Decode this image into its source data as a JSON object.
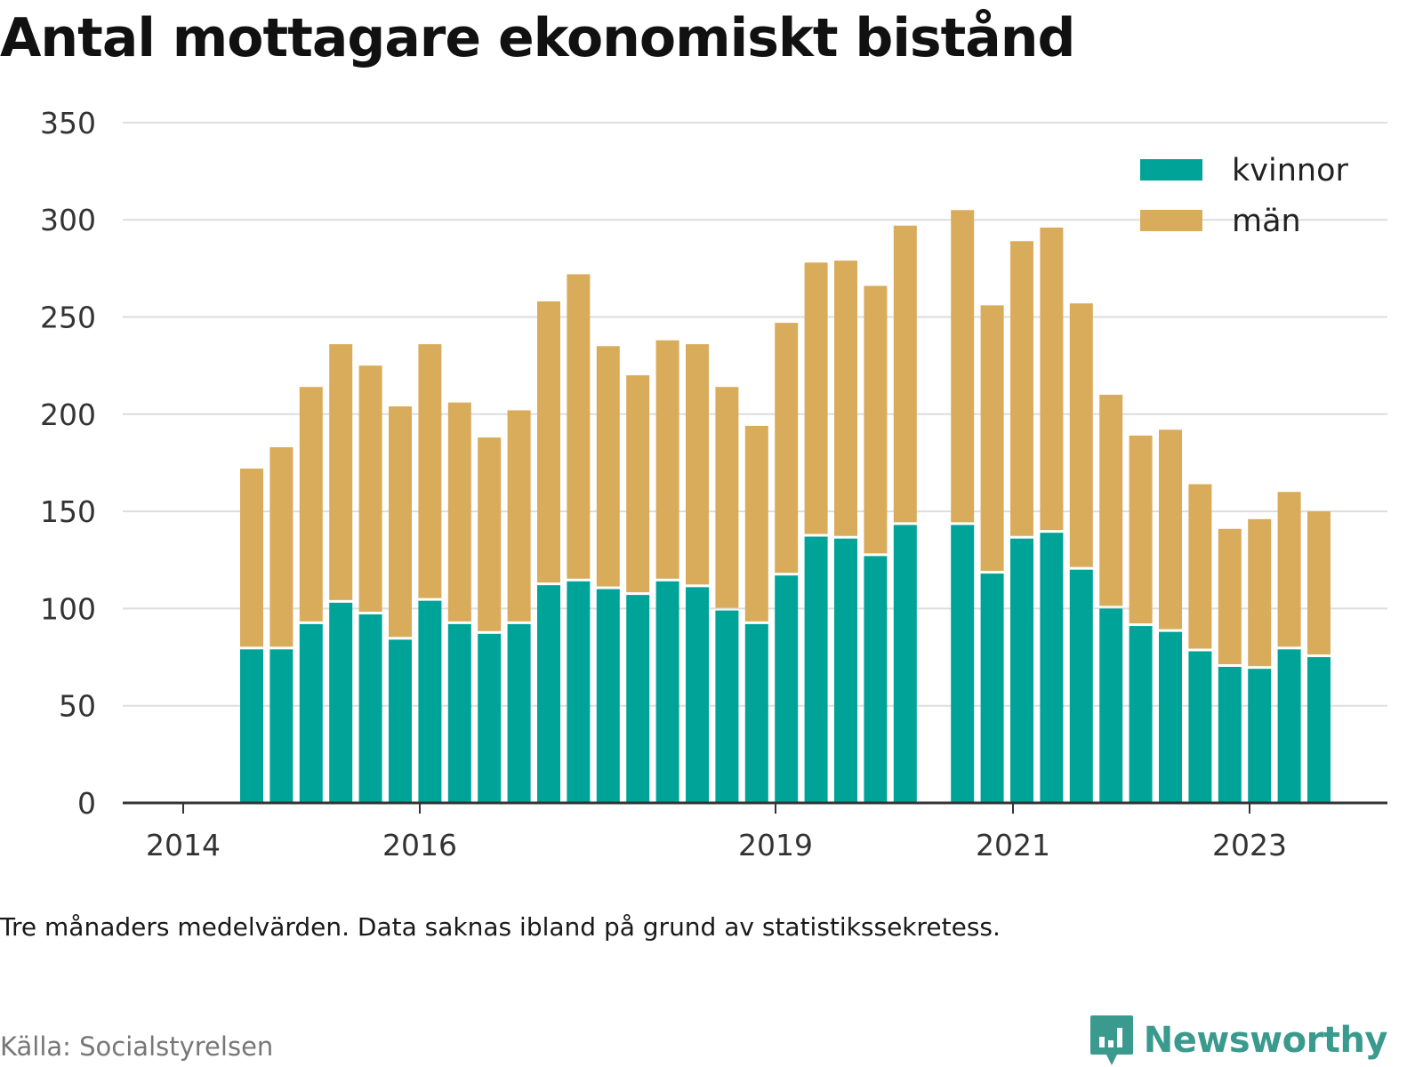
{
  "header": {
    "title": "Antal mottagare ekonomiskt bistånd"
  },
  "footer": {
    "note": "Tre månaders medelvärden. Data saknas ibland på grund av statistikssekretess.",
    "source": "Källa: Socialstyrelsen",
    "logo_text": "Newsworthy",
    "logo_icon": "bar-chart-speech-bubble-icon"
  },
  "colors": {
    "kvinnor": "#00a398",
    "man": "#d9ac5b",
    "grid": "#dddddd",
    "axis": "#333333",
    "logo": "#3a9a8e"
  },
  "chart_data": {
    "type": "bar",
    "stacked": true,
    "title": "Antal mottagare ekonomiskt bistånd",
    "xlabel": "",
    "ylabel": "",
    "ylim": [
      0,
      350
    ],
    "yticks": [
      0,
      50,
      100,
      150,
      200,
      250,
      300,
      350
    ],
    "grid": true,
    "legend_position": "top-right",
    "xtick_labels": [
      "2014",
      "2016",
      "2019",
      "2021",
      "2023"
    ],
    "categories": [
      "2014 kv3",
      "2014 kv4",
      "2015 kv1",
      "2015 kv2",
      "2015 kv3",
      "2015 kv4",
      "2016 kv1",
      "2016 kv2",
      "2016 kv3",
      "2016 kv4",
      "2017 kv1",
      "2017 kv2",
      "2017 kv3",
      "2017 kv4",
      "2018 kv1",
      "2018 kv2",
      "2018 kv3",
      "2018 kv4",
      "2019 kv1",
      "2019 kv2",
      "2019 kv3",
      "2019 kv4",
      "2020 kv1",
      "2020 kv2",
      "2020 kv3",
      "2020 kv4",
      "2021 kv1",
      "2021 kv2",
      "2021 kv3",
      "2021 kv4",
      "2022 kv1",
      "2022 kv2",
      "2022 kv3",
      "2022 kv4",
      "2023 kv1",
      "2023 kv2",
      "2023 kv3"
    ],
    "series": [
      {
        "name": "kvinnor",
        "values": [
          79,
          79,
          92,
          103,
          97,
          84,
          104,
          92,
          87,
          92,
          112,
          114,
          110,
          107,
          114,
          111,
          99,
          92,
          117,
          137,
          136,
          127,
          143,
          null,
          143,
          118,
          136,
          139,
          120,
          100,
          91,
          88,
          78,
          70,
          69,
          79,
          75
        ]
      },
      {
        "name": "män",
        "values": [
          93,
          104,
          122,
          133,
          128,
          120,
          132,
          114,
          101,
          110,
          146,
          158,
          125,
          113,
          124,
          125,
          115,
          102,
          130,
          141,
          143,
          139,
          154,
          null,
          162,
          138,
          153,
          157,
          137,
          110,
          98,
          104,
          86,
          71,
          77,
          81,
          75
        ]
      }
    ]
  }
}
